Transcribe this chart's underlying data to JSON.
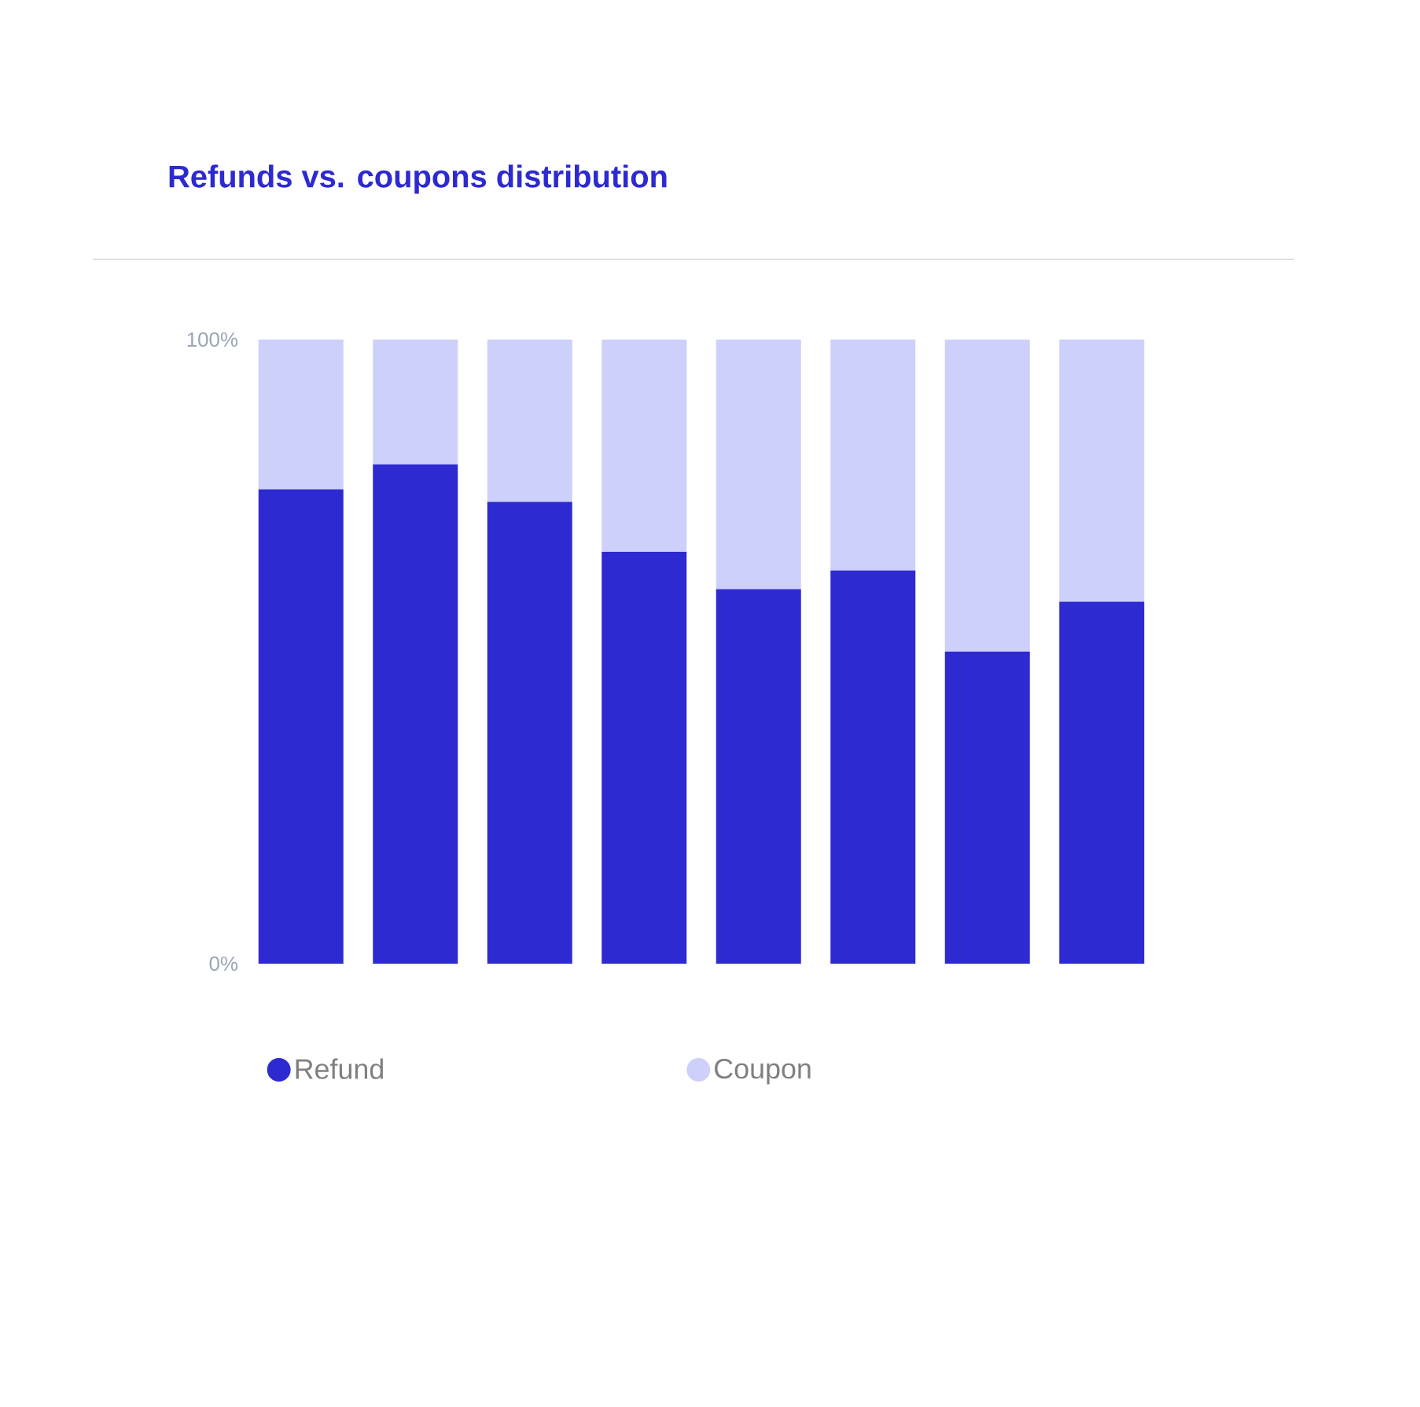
{
  "chart_data": {
    "type": "bar",
    "title": "Refunds vs. coupons distribution",
    "categories": [
      null,
      null,
      null,
      null,
      null,
      null,
      null,
      null
    ],
    "series": [
      {
        "name": "Refund",
        "color": "#2d2ad1",
        "values": [
          76,
          80,
          74,
          66,
          60,
          63,
          50,
          58
        ]
      },
      {
        "name": "Coupon",
        "color": "#cdd0fb",
        "values": [
          24,
          20,
          26,
          34,
          40,
          37,
          50,
          42
        ]
      }
    ],
    "stacked": true,
    "ylim": [
      0,
      100
    ],
    "yticks": [
      {
        "value": 0,
        "label": "0%"
      },
      {
        "value": 100,
        "label": "100%"
      }
    ],
    "tick_labels": "y",
    "legend": "bottom",
    "grid": false
  }
}
